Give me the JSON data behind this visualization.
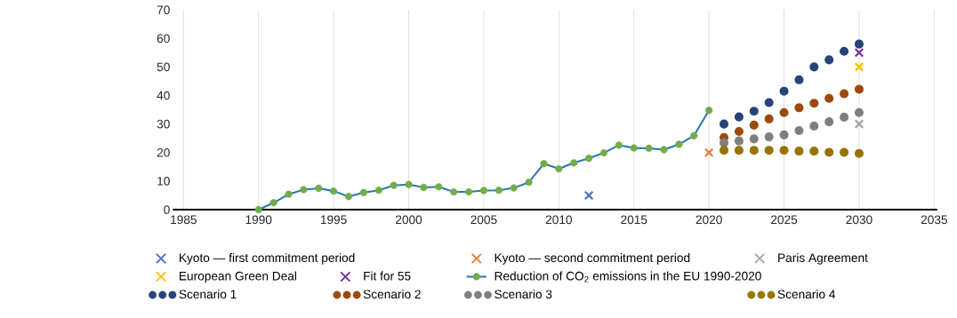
{
  "chart_data": {
    "type": "scatter",
    "xlim": [
      1985,
      2035
    ],
    "xticks": [
      1985,
      1990,
      1995,
      2000,
      2005,
      2010,
      2015,
      2020,
      2025,
      2030,
      2035
    ],
    "ylim": [
      0,
      70
    ],
    "yticks": [
      0,
      10,
      20,
      30,
      40,
      50,
      60,
      70
    ],
    "grid": "x",
    "legend": "bottom",
    "series": [
      {
        "name": "Kyoto — first commitment period",
        "type": "scatter",
        "marker": "cross",
        "color": "#4472c4",
        "x": [
          2012
        ],
        "values": [
          5
        ]
      },
      {
        "name": "Kyoto — second commitment period",
        "type": "scatter",
        "marker": "cross",
        "color": "#ed7d31",
        "x": [
          2020
        ],
        "values": [
          20
        ]
      },
      {
        "name": "Paris Agreement",
        "type": "scatter",
        "marker": "cross",
        "color": "#a5a5a5",
        "x": [
          2030
        ],
        "values": [
          30
        ]
      },
      {
        "name": "European Green Deal",
        "type": "scatter",
        "marker": "cross",
        "color": "#ffc000",
        "x": [
          2030
        ],
        "values": [
          50
        ]
      },
      {
        "name": "Fit for 55",
        "type": "scatter",
        "marker": "cross",
        "color": "#7030a0",
        "x": [
          2030
        ],
        "values": [
          55
        ]
      },
      {
        "name": "Reduction of CO$_{2}$ emissions in the EU 1990-2020",
        "type": "line",
        "marker": "circle",
        "color": "#2e75b6",
        "colors": [
          "#70ad47",
          "#70ad47",
          "#70ad47",
          "#70ad47",
          "#70ad47",
          "#70ad47",
          "#70ad47",
          "#70ad47",
          "#70ad47",
          "#70ad47",
          "#70ad47",
          "#70ad47",
          "#70ad47",
          "#70ad47",
          "#70ad47",
          "#70ad47",
          "#70ad47",
          "#70ad47",
          "#70ad47",
          "#70ad47",
          "#70ad47",
          "#70ad47",
          "#70ad47",
          "#70ad47",
          "#70ad47",
          "#70ad47",
          "#70ad47",
          "#70ad47",
          "#70ad47",
          "#70ad47",
          "#70ad47"
        ],
        "x": [
          1990,
          1991,
          1992,
          1993,
          1994,
          1995,
          1996,
          1997,
          1998,
          1999,
          2000,
          2001,
          2002,
          2003,
          2004,
          2005,
          2006,
          2007,
          2008,
          2009,
          2010,
          2011,
          2012,
          2013,
          2014,
          2015,
          2016,
          2017,
          2018,
          2019,
          2020
        ],
        "values": [
          0,
          2.4,
          5.4,
          7,
          7.5,
          6.5,
          4.6,
          6,
          6.8,
          8.5,
          8.8,
          7.8,
          8,
          6.2,
          6.2,
          6.7,
          6.8,
          7.6,
          9.6,
          16.1,
          14.3,
          16.4,
          18,
          19.9,
          22.6,
          21.6,
          21.5,
          21,
          22.9,
          25.9,
          34.8
        ]
      },
      {
        "name": "Scenario 1",
        "marker": "circle",
        "color": "#264478",
        "x": [
          2021,
          2022,
          2023,
          2024,
          2025,
          2026,
          2027,
          2028,
          2029,
          2030
        ],
        "values": [
          30,
          32.5,
          34.5,
          37.5,
          41.5,
          45.5,
          50,
          52.5,
          55.5,
          58
        ]
      },
      {
        "name": "Scenario 2",
        "marker": "circle",
        "color": "#9e480e",
        "x": [
          2021,
          2022,
          2023,
          2024,
          2025,
          2026,
          2027,
          2028,
          2029,
          2030
        ],
        "values": [
          25.3,
          27.4,
          29.6,
          31.8,
          34,
          35.7,
          37.3,
          39,
          40.6,
          42.2
        ]
      },
      {
        "name": "Scenario 3",
        "marker": "circle",
        "color": "#7f7f7f",
        "x": [
          2021,
          2022,
          2023,
          2024,
          2025,
          2026,
          2027,
          2028,
          2029,
          2030
        ],
        "values": [
          23.4,
          24.1,
          24.8,
          25.5,
          26.2,
          27.7,
          29.3,
          30.8,
          32.4,
          34
        ]
      },
      {
        "name": "Scenario 4",
        "marker": "circle",
        "color": "#997300",
        "x": [
          2021,
          2022,
          2023,
          2024,
          2025,
          2026,
          2027,
          2028,
          2029,
          2030
        ],
        "values": [
          20.8,
          20.8,
          20.8,
          20.8,
          20.8,
          20.5,
          20.5,
          20.1,
          20.1,
          19.7
        ]
      }
    ]
  }
}
